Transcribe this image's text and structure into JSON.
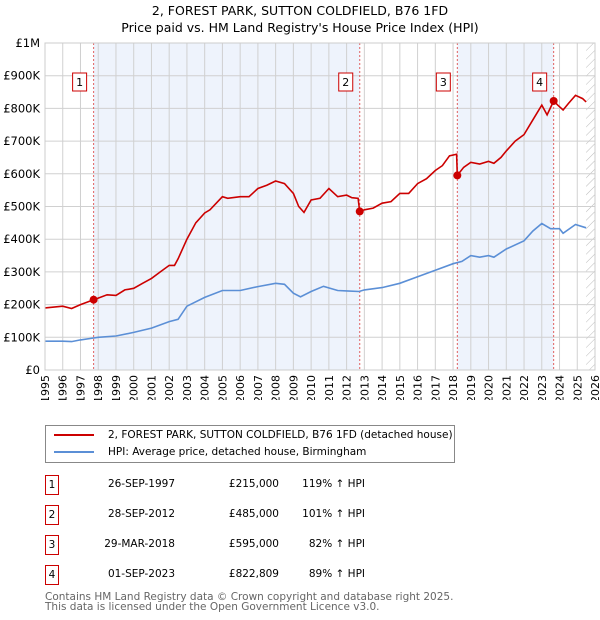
{
  "title_line1": "2, FOREST PARK, SUTTON COLDFIELD, B76 1FD",
  "title_line2": "Price paid vs. HM Land Registry's House Price Index (HPI)",
  "chart_data": {
    "type": "line",
    "title": "2, FOREST PARK, SUTTON COLDFIELD, B76 1FD — Price paid vs. HM Land Registry's House Price Index (HPI)",
    "xlim": [
      1995,
      2026
    ],
    "ylim": [
      0,
      1000000
    ],
    "x_ticks": [
      "1995",
      "1996",
      "1997",
      "1998",
      "1999",
      "2000",
      "2001",
      "2002",
      "2003",
      "2004",
      "2005",
      "2006",
      "2007",
      "2008",
      "2009",
      "2010",
      "2011",
      "2012",
      "2013",
      "2014",
      "2015",
      "2016",
      "2017",
      "2018",
      "2019",
      "2020",
      "2021",
      "2022",
      "2023",
      "2024",
      "2025",
      "2026"
    ],
    "y_ticks": [
      {
        "v": 0,
        "label": "£0"
      },
      {
        "v": 100000,
        "label": "£100K"
      },
      {
        "v": 200000,
        "label": "£200K"
      },
      {
        "v": 300000,
        "label": "£300K"
      },
      {
        "v": 400000,
        "label": "£400K"
      },
      {
        "v": 500000,
        "label": "£500K"
      },
      {
        "v": 600000,
        "label": "£600K"
      },
      {
        "v": 700000,
        "label": "£700K"
      },
      {
        "v": 800000,
        "label": "£800K"
      },
      {
        "v": 900000,
        "label": "£900K"
      },
      {
        "v": 1000000,
        "label": "£1M"
      }
    ],
    "grid": true,
    "series": [
      {
        "name": "2, FOREST PARK, SUTTON COLDFIELD, B76 1FD (detached house)",
        "color": "#cc0000",
        "x": [
          1995,
          1996,
          1996.5,
          1997,
          1997.74,
          1998,
          1998.5,
          1999,
          1999.5,
          2000,
          2000.5,
          2001,
          2001.5,
          2002,
          2002.3,
          2002.5,
          2003,
          2003.5,
          2004,
          2004.3,
          2005,
          2005.3,
          2006,
          2006.5,
          2007,
          2007.5,
          2008,
          2008.5,
          2009,
          2009.3,
          2009.6,
          2010,
          2010.5,
          2011,
          2011.5,
          2012,
          2012.3,
          2012.65,
          2012.74,
          2013,
          2013.5,
          2014,
          2014.5,
          2015,
          2015.5,
          2016,
          2016.5,
          2017,
          2017.4,
          2017.8,
          2018.2,
          2018.24,
          2018.6,
          2019,
          2019.5,
          2020,
          2020.3,
          2020.7,
          2021,
          2021.5,
          2022,
          2022.5,
          2023,
          2023.3,
          2023.67,
          2023.9,
          2024.2,
          2024.5,
          2024.9,
          2025.3,
          2025.5
        ],
        "y": [
          190000,
          195000,
          188000,
          200000,
          215000,
          220000,
          230000,
          228000,
          245000,
          250000,
          265000,
          280000,
          300000,
          320000,
          320000,
          340000,
          400000,
          450000,
          480000,
          490000,
          530000,
          525000,
          530000,
          530000,
          555000,
          565000,
          578000,
          570000,
          540000,
          500000,
          482000,
          520000,
          525000,
          555000,
          530000,
          535000,
          527000,
          525000,
          485000,
          490000,
          495000,
          510000,
          515000,
          540000,
          540000,
          570000,
          585000,
          610000,
          625000,
          655000,
          660000,
          595000,
          620000,
          635000,
          630000,
          638000,
          632000,
          650000,
          670000,
          700000,
          720000,
          765000,
          810000,
          780000,
          822809,
          810000,
          795000,
          815000,
          840000,
          830000,
          820000
        ]
      },
      {
        "name": "HPI: Average price, detached house, Birmingham",
        "color": "#5b8fd6",
        "x": [
          1995,
          1996,
          1996.5,
          1997,
          1997.74,
          1998,
          1999,
          2000,
          2001,
          2002,
          2002.5,
          2003,
          2004,
          2005,
          2006,
          2007,
          2008,
          2008.5,
          2009,
          2009.4,
          2010,
          2010.7,
          2011.5,
          2012,
          2012.7,
          2013,
          2014,
          2015,
          2016,
          2017,
          2018,
          2018.5,
          2019,
          2019.5,
          2020,
          2020.3,
          2021,
          2022,
          2022.5,
          2023,
          2023.5,
          2024,
          2024.2,
          2024.9,
          2025.5
        ],
        "y": [
          88000,
          88000,
          87000,
          92000,
          98000,
          100000,
          104000,
          115000,
          128000,
          148000,
          155000,
          195000,
          222000,
          243000,
          243000,
          255000,
          265000,
          262000,
          235000,
          224000,
          240000,
          256000,
          243000,
          242000,
          240000,
          245000,
          252000,
          265000,
          285000,
          305000,
          325000,
          332000,
          350000,
          345000,
          350000,
          345000,
          370000,
          395000,
          425000,
          448000,
          432000,
          432000,
          418000,
          445000,
          435000
        ]
      }
    ],
    "sales": [
      {
        "n": "1",
        "x": 1997.74,
        "y": 215000
      },
      {
        "n": "2",
        "x": 2012.74,
        "y": 485000
      },
      {
        "n": "3",
        "x": 2018.24,
        "y": 595000
      },
      {
        "n": "4",
        "x": 2023.67,
        "y": 822809
      }
    ],
    "forecast_hatch_from": 2025.5,
    "legend_placement": "below"
  },
  "legend": {
    "property": "2, FOREST PARK, SUTTON COLDFIELD, B76 1FD (detached house)",
    "hpi": "HPI: Average price, detached house, Birmingham"
  },
  "transactions": [
    {
      "n": "1",
      "date": "26-SEP-1997",
      "price": "£215,000",
      "pct": "119% ↑ HPI"
    },
    {
      "n": "2",
      "date": "28-SEP-2012",
      "price": "£485,000",
      "pct": "101% ↑ HPI"
    },
    {
      "n": "3",
      "date": "29-MAR-2018",
      "price": "£595,000",
      "pct": "82% ↑ HPI"
    },
    {
      "n": "4",
      "date": "01-SEP-2023",
      "price": "£822,809",
      "pct": "89% ↑ HPI"
    }
  ],
  "footer_line1": "Contains HM Land Registry data © Crown copyright and database right 2025.",
  "footer_line2": "This data is licensed under the Open Government Licence v3.0."
}
